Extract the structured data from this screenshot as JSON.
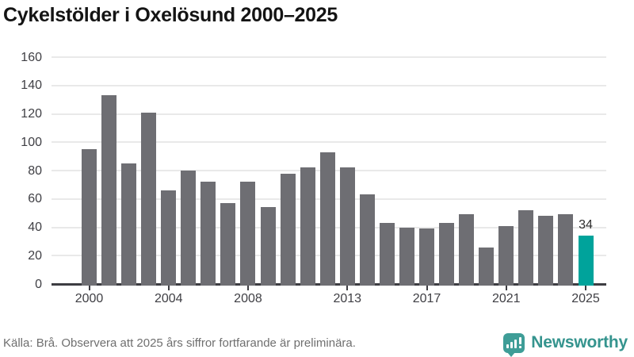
{
  "title": "Cykelstölder i Oxelösund 2000–2025",
  "footer": {
    "source": "Källa: Brå. Observera att 2025 års siffror fortfarande är preliminära.",
    "brand": "Newsworthy"
  },
  "colors": {
    "bar": "#6e6e73",
    "highlight": "#00a39b",
    "gridline": "#e9e9e9",
    "axis": "#3d3d42",
    "brand_teal": "#35948e",
    "brand_icon_teal": "#3e9d97"
  },
  "chart_data": {
    "type": "bar",
    "title": "Cykelstölder i Oxelösund 2000–2025",
    "categories": [
      "2000",
      "2001",
      "2002",
      "2003",
      "2004",
      "2005",
      "2006",
      "2007",
      "2008",
      "2009",
      "2010",
      "2011",
      "2012",
      "2013",
      "2014",
      "2015",
      "2016",
      "2017",
      "2018",
      "2019",
      "2020",
      "2021",
      "2022",
      "2023",
      "2024",
      "2025"
    ],
    "values": [
      95,
      133,
      85,
      121,
      66,
      80,
      72,
      57,
      72,
      54,
      78,
      82,
      93,
      82,
      63,
      43,
      40,
      39,
      43,
      49,
      26,
      41,
      52,
      48,
      49,
      34
    ],
    "xlabel": "",
    "ylabel": "",
    "ylim": [
      0,
      160
    ],
    "yticks": [
      0,
      20,
      40,
      60,
      80,
      100,
      120,
      140,
      160
    ],
    "xtick_labels": [
      "2000",
      "2004",
      "2008",
      "2013",
      "2017",
      "2021",
      "2025"
    ],
    "grid": true,
    "legend": false,
    "highlight_category": "2025",
    "value_label": {
      "category": "2025",
      "text": "34"
    }
  }
}
